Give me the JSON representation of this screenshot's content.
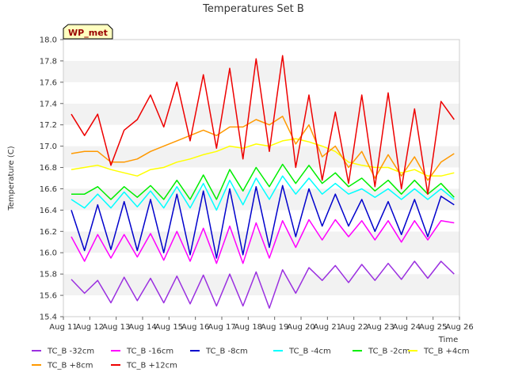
{
  "chart_data": {
    "type": "line",
    "title": "Temperatures Set B",
    "xlabel": "Time",
    "ylabel": "Temperature (C)",
    "badge": "WP_met",
    "ylim": [
      15.4,
      18.0
    ],
    "yticks": [
      "15.4",
      "15.6",
      "15.8",
      "16.0",
      "16.2",
      "16.4",
      "16.6",
      "16.8",
      "17.0",
      "17.2",
      "17.4",
      "17.6",
      "17.8",
      "18.0"
    ],
    "xlim": [
      11,
      26
    ],
    "xticks": [
      {
        "day": 11,
        "label": "Aug 11"
      },
      {
        "day": 12,
        "label": "Aug 12"
      },
      {
        "day": 13,
        "label": "Aug 13"
      },
      {
        "day": 14,
        "label": "Aug 14"
      },
      {
        "day": 15,
        "label": "Aug 15"
      },
      {
        "day": 16,
        "label": "Aug 16"
      },
      {
        "day": 17,
        "label": "Aug 17"
      },
      {
        "day": 18,
        "label": "Aug 18"
      },
      {
        "day": 19,
        "label": "Aug 19"
      },
      {
        "day": 20,
        "label": "Aug 20"
      },
      {
        "day": 21,
        "label": "Aug 21"
      },
      {
        "day": 22,
        "label": "Aug 22"
      },
      {
        "day": 23,
        "label": "Aug 23"
      },
      {
        "day": 24,
        "label": "Aug 24"
      },
      {
        "day": 25,
        "label": "Aug 25"
      },
      {
        "day": 26,
        "label": "Aug 26"
      }
    ],
    "x_start_day": 11.3,
    "x_step_days": 0.5,
    "legend_position": "bottom",
    "grid": "alternating horizontal bands",
    "series": [
      {
        "name": "TC_B -32cm",
        "color": "#9b30e0",
        "values": [
          15.75,
          15.62,
          15.74,
          15.53,
          15.77,
          15.55,
          15.76,
          15.53,
          15.78,
          15.52,
          15.79,
          15.5,
          15.8,
          15.5,
          15.82,
          15.48,
          15.84,
          15.62,
          15.86,
          15.74,
          15.88,
          15.72,
          15.89,
          15.74,
          15.9,
          15.75,
          15.92,
          15.76,
          15.92,
          15.8
        ]
      },
      {
        "name": "TC_B -16cm",
        "color": "#ff00ff",
        "values": [
          16.15,
          15.92,
          16.17,
          15.95,
          16.17,
          15.96,
          16.18,
          15.93,
          16.2,
          15.92,
          16.23,
          15.9,
          16.25,
          15.9,
          16.28,
          15.95,
          16.3,
          16.05,
          16.31,
          16.12,
          16.31,
          16.15,
          16.3,
          16.12,
          16.3,
          16.1,
          16.3,
          16.12,
          16.3,
          16.28
        ]
      },
      {
        "name": "TC_B -8cm",
        "color": "#0000cc",
        "values": [
          16.4,
          16.02,
          16.45,
          16.03,
          16.48,
          16.02,
          16.5,
          16.0,
          16.55,
          15.98,
          16.58,
          15.95,
          16.6,
          15.98,
          16.62,
          16.05,
          16.63,
          16.15,
          16.6,
          16.25,
          16.55,
          16.25,
          16.5,
          16.2,
          16.48,
          16.17,
          16.5,
          16.15,
          16.53,
          16.45
        ]
      },
      {
        "name": "TC_B -4cm",
        "color": "#00ffff",
        "values": [
          16.5,
          16.42,
          16.55,
          16.42,
          16.57,
          16.43,
          16.58,
          16.42,
          16.62,
          16.42,
          16.65,
          16.4,
          16.68,
          16.45,
          16.7,
          16.5,
          16.72,
          16.55,
          16.7,
          16.55,
          16.65,
          16.55,
          16.6,
          16.52,
          16.6,
          16.5,
          16.6,
          16.5,
          16.6,
          16.5
        ]
      },
      {
        "name": "TC_B -2cm",
        "color": "#00ee00",
        "values": [
          16.55,
          16.55,
          16.62,
          16.5,
          16.62,
          16.52,
          16.63,
          16.5,
          16.68,
          16.5,
          16.73,
          16.5,
          16.78,
          16.58,
          16.8,
          16.62,
          16.83,
          16.65,
          16.82,
          16.65,
          16.75,
          16.62,
          16.7,
          16.58,
          16.68,
          16.55,
          16.68,
          16.55,
          16.65,
          16.52
        ]
      },
      {
        "name": "TC_B +4cm",
        "color": "#ffff00",
        "values": [
          16.78,
          16.8,
          16.82,
          16.78,
          16.75,
          16.72,
          16.78,
          16.8,
          16.85,
          16.88,
          16.92,
          16.95,
          17.0,
          16.98,
          17.02,
          17.0,
          17.05,
          17.07,
          17.04,
          17.0,
          16.95,
          16.85,
          16.82,
          16.8,
          16.8,
          16.75,
          16.78,
          16.72,
          16.72,
          16.75
        ]
      },
      {
        "name": "TC_B +8cm",
        "color": "#ff9900",
        "values": [
          16.93,
          16.95,
          16.95,
          16.85,
          16.85,
          16.88,
          16.95,
          17.0,
          17.05,
          17.1,
          17.15,
          17.1,
          17.18,
          17.18,
          17.25,
          17.2,
          17.28,
          17.02,
          17.2,
          16.9,
          17.0,
          16.8,
          16.95,
          16.7,
          16.92,
          16.72,
          16.9,
          16.68,
          16.85,
          16.93
        ]
      },
      {
        "name": "TC_B +12cm",
        "color": "#ee0000",
        "values": [
          17.3,
          17.1,
          17.3,
          16.82,
          17.15,
          17.25,
          17.48,
          17.18,
          17.6,
          17.05,
          17.67,
          16.98,
          17.73,
          16.88,
          17.82,
          16.95,
          17.85,
          16.8,
          17.48,
          16.68,
          17.32,
          16.65,
          17.48,
          16.62,
          17.5,
          16.6,
          17.35,
          16.55,
          17.42,
          17.25
        ]
      }
    ]
  }
}
